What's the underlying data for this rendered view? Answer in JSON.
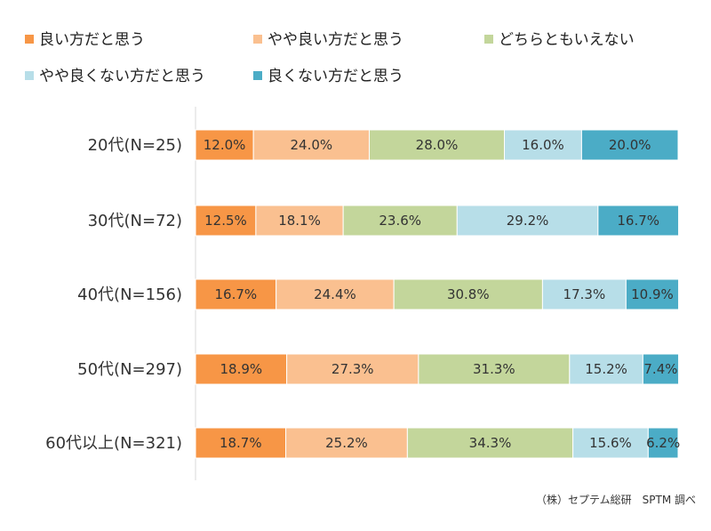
{
  "chart_data": {
    "type": "bar",
    "orientation": "horizontal",
    "stacked": "percent",
    "categories": [
      "20代(N=25)",
      "30代(N=72)",
      "40代(N=156)",
      "50代(N=297)",
      "60代以上(N=321)"
    ],
    "series": [
      {
        "name": "良い方だと思う",
        "color": "#F79646",
        "values": [
          12.0,
          12.5,
          16.7,
          18.9,
          18.7
        ],
        "labels": [
          "12.0%",
          "12.5%",
          "16.7%",
          "18.9%",
          "18.7%"
        ]
      },
      {
        "name": "やや良い方だと思う",
        "color": "#FAC090",
        "values": [
          24.0,
          18.1,
          24.4,
          27.3,
          25.2
        ],
        "labels": [
          "24.0%",
          "18.1%",
          "24.4%",
          "27.3%",
          "25.2%"
        ]
      },
      {
        "name": "どちらともいえない",
        "color": "#C3D69B",
        "values": [
          28.0,
          23.6,
          30.8,
          31.3,
          34.3
        ],
        "labels": [
          "28.0%",
          "23.6%",
          "30.8%",
          "31.3%",
          "34.3%"
        ]
      },
      {
        "name": "やや良くない方だと思う",
        "color": "#B7DEE8",
        "values": [
          16.0,
          29.2,
          17.3,
          15.2,
          15.6
        ],
        "labels": [
          "16.0%",
          "29.2%",
          "17.3%",
          "15.2%",
          "15.6%"
        ]
      },
      {
        "name": "良くない方だと思う",
        "color": "#4BACC6",
        "values": [
          20.0,
          16.7,
          10.9,
          7.4,
          6.2
        ],
        "labels": [
          "20.0%",
          "16.7%",
          "10.9%",
          "7.4%",
          "6.2%"
        ]
      }
    ],
    "xlim": [
      0,
      100
    ],
    "grid": false,
    "legend": "top",
    "source": "（株）セプテム総研　SPTM 調べ"
  }
}
